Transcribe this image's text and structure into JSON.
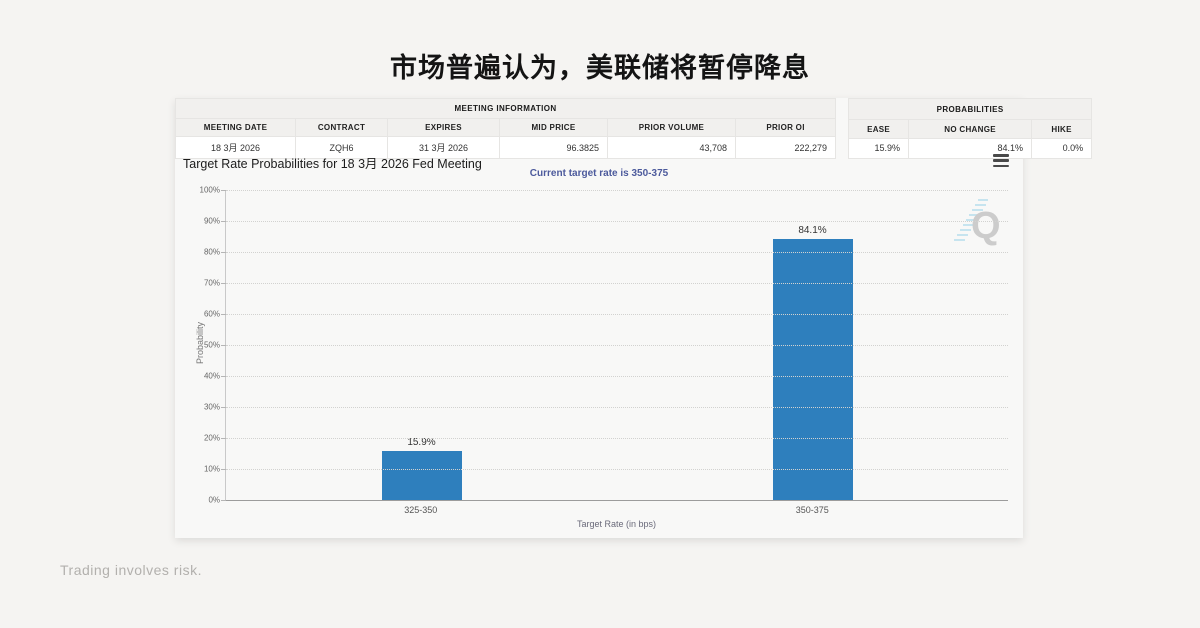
{
  "page": {
    "title": "市场普遍认为，美联储将暂停降息",
    "footer": "Trading involves risk."
  },
  "meeting_table": {
    "header": "MEETING INFORMATION",
    "columns": [
      "MEETING DATE",
      "CONTRACT",
      "EXPIRES",
      "MID PRICE",
      "PRIOR VOLUME",
      "PRIOR OI"
    ],
    "values": [
      "18 3月 2026",
      "ZQH6",
      "31 3月 2026",
      "96.3825",
      "43,708",
      "222,279"
    ]
  },
  "probabilities_table": {
    "header": "PROBABILITIES",
    "columns": [
      "EASE",
      "NO CHANGE",
      "HIKE"
    ],
    "values": [
      "15.9%",
      "84.1%",
      "0.0%"
    ]
  },
  "chart": {
    "title": "Target Rate Probabilities for 18 3月 2026 Fed Meeting",
    "subtitle": "Current target rate is 350-375",
    "menu_icon": "hamburger-icon",
    "watermark_letter": "Q"
  },
  "chart_data": {
    "type": "bar",
    "categories": [
      "325-350",
      "350-375"
    ],
    "values": [
      15.9,
      84.1
    ],
    "value_labels": [
      "15.9%",
      "84.1%"
    ],
    "title": "Target Rate Probabilities for 18 3月 2026 Fed Meeting",
    "subtitle": "Current target rate is 350-375",
    "xlabel": "Target Rate (in bps)",
    "ylabel": "Probability",
    "ylim": [
      0,
      100
    ],
    "ytick_step": 10,
    "ytick_suffix": "%",
    "bar_color": "#2e7fbd",
    "grid": "dotted",
    "legend": "none"
  }
}
